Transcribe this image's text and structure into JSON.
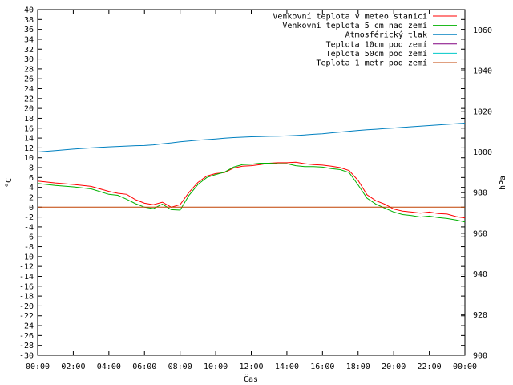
{
  "chart_data": {
    "type": "line",
    "title": "",
    "xlabel": "Čas",
    "ylabel": "°C",
    "y2label": "hPa",
    "ylim": [
      -30,
      40
    ],
    "y2lim": [
      900,
      1070
    ],
    "xlim_hours": [
      0,
      24
    ],
    "grid": false,
    "legend_position": "top-right",
    "x_tick_labels": [
      "00:00",
      "02:00",
      "04:00",
      "06:00",
      "08:00",
      "10:00",
      "12:00",
      "14:00",
      "16:00",
      "18:00",
      "20:00",
      "22:00",
      "00:00"
    ],
    "y_ticks": [
      -30,
      -28,
      -26,
      -24,
      -22,
      -20,
      -18,
      -16,
      -14,
      -12,
      -10,
      -8,
      -6,
      -4,
      -2,
      0,
      2,
      4,
      6,
      8,
      10,
      12,
      14,
      16,
      18,
      20,
      22,
      24,
      26,
      28,
      30,
      32,
      34,
      36,
      38,
      40
    ],
    "y2_ticks": [
      900,
      920,
      940,
      960,
      980,
      1000,
      1020,
      1040,
      1060
    ],
    "x_hours": [
      0,
      1,
      2,
      3,
      4,
      4.5,
      5,
      5.5,
      6,
      6.5,
      7,
      7.5,
      8,
      8.5,
      9,
      9.5,
      10,
      10.5,
      11,
      11.5,
      12,
      12.5,
      13,
      13.5,
      14,
      14.5,
      15,
      15.5,
      16,
      16.5,
      17,
      17.5,
      18,
      18.5,
      19,
      19.5,
      20,
      20.5,
      21,
      21.5,
      22,
      22.5,
      23,
      23.5,
      24
    ],
    "series": [
      {
        "name": "Venkovní teplota v meteo stanici",
        "axis": "y",
        "color": "#ff0000",
        "values": [
          5.3,
          4.9,
          4.6,
          4.2,
          3.2,
          2.8,
          2.6,
          1.5,
          0.8,
          0.5,
          1.0,
          0.0,
          0.5,
          3.0,
          5.0,
          6.3,
          6.8,
          7.0,
          7.9,
          8.3,
          8.4,
          8.6,
          8.9,
          9.0,
          9.0,
          9.1,
          8.8,
          8.6,
          8.5,
          8.3,
          8.0,
          7.4,
          5.4,
          2.5,
          1.3,
          0.6,
          -0.4,
          -0.8,
          -1.0,
          -1.2,
          -1.0,
          -1.3,
          -1.4,
          -1.9,
          -2.2
        ]
      },
      {
        "name": "Venkovní teplota 5 cm nad zemí",
        "axis": "y",
        "color": "#00b000",
        "values": [
          4.8,
          4.4,
          4.1,
          3.7,
          2.6,
          2.4,
          1.6,
          0.7,
          0.0,
          -0.3,
          0.6,
          -0.5,
          -0.6,
          2.4,
          4.6,
          6.0,
          6.6,
          7.1,
          8.1,
          8.6,
          8.7,
          8.9,
          8.9,
          8.8,
          8.8,
          8.4,
          8.2,
          8.2,
          8.1,
          7.8,
          7.6,
          7.0,
          4.5,
          1.8,
          0.6,
          -0.2,
          -1.0,
          -1.5,
          -1.7,
          -2.0,
          -1.8,
          -2.1,
          -2.3,
          -2.6,
          -3.0
        ]
      },
      {
        "name": "Atmosférický tlak",
        "axis": "y2",
        "color": "#0080c0",
        "values": [
          1000.0,
          1000.7,
          1001.4,
          1002.0,
          1002.5,
          1002.7,
          1002.9,
          1003.1,
          1003.2,
          1003.5,
          1004.0,
          1004.5,
          1005.0,
          1005.4,
          1005.8,
          1006.1,
          1006.4,
          1006.8,
          1007.1,
          1007.3,
          1007.5,
          1007.6,
          1007.7,
          1007.8,
          1007.9,
          1008.1,
          1008.4,
          1008.7,
          1009.0,
          1009.4,
          1009.8,
          1010.2,
          1010.6,
          1010.9,
          1011.2,
          1011.5,
          1011.8,
          1012.1,
          1012.4,
          1012.7,
          1013.0,
          1013.3,
          1013.6,
          1013.9,
          1014.2
        ]
      },
      {
        "name": "Teplota 10cm pod zemí",
        "axis": "y",
        "color": "#800080",
        "values": []
      },
      {
        "name": "Teplota 50cm pod zemí",
        "axis": "y",
        "color": "#00c8c8",
        "values": []
      },
      {
        "name": "Teplota 1 metr pod zemí",
        "axis": "y",
        "color": "#c04000",
        "values": [
          0,
          0,
          0,
          0,
          0,
          0,
          0,
          0,
          0,
          0,
          0,
          0,
          0,
          0,
          0,
          0,
          0,
          0,
          0,
          0,
          0,
          0,
          0,
          0,
          0,
          0,
          0,
          0,
          0,
          0,
          0,
          0,
          0,
          0,
          0,
          0,
          0,
          0,
          0,
          0,
          0,
          0,
          0,
          0,
          0
        ]
      }
    ]
  }
}
